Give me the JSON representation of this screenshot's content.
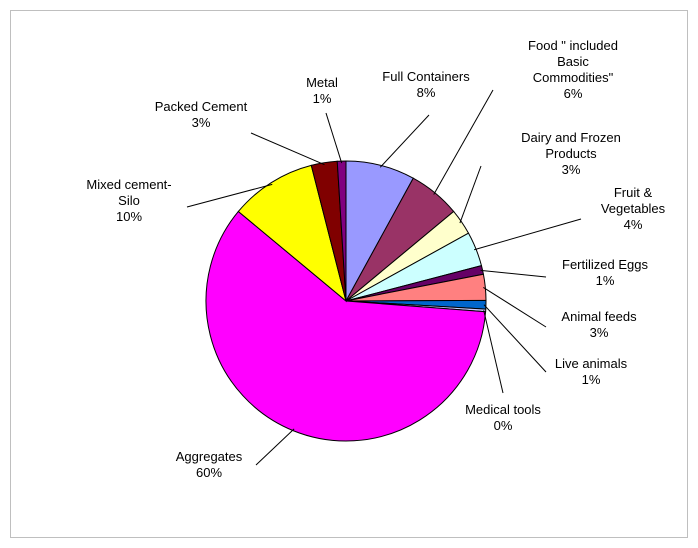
{
  "chart_data": {
    "type": "pie",
    "title": "",
    "start_angle_deg": 0,
    "direction": "clockwise",
    "slices": [
      {
        "label_lines": [
          "Full Containers"
        ],
        "value_label": "8%",
        "value": 8,
        "color": "#9999ff"
      },
      {
        "label_lines": [
          "Food \" included",
          "Basic",
          "Commodities\""
        ],
        "value_label": "6%",
        "value": 6,
        "color": "#993366"
      },
      {
        "label_lines": [
          "Dairy and Frozen",
          "Products"
        ],
        "value_label": "3%",
        "value": 3,
        "color": "#ffffcc"
      },
      {
        "label_lines": [
          "Fruit &",
          "Vegetables"
        ],
        "value_label": "4%",
        "value": 4,
        "color": "#ccffff"
      },
      {
        "label_lines": [
          "Fertilized Eggs"
        ],
        "value_label": "1%",
        "value": 1,
        "color": "#660066"
      },
      {
        "label_lines": [
          "Animal feeds"
        ],
        "value_label": "3%",
        "value": 3,
        "color": "#ff8080"
      },
      {
        "label_lines": [
          "Live animals"
        ],
        "value_label": "1%",
        "value": 1,
        "color": "#0066cc"
      },
      {
        "label_lines": [
          "Medical tools"
        ],
        "value_label": "0%",
        "value": 0.3,
        "color": "#ccccff"
      },
      {
        "label_lines": [
          "Aggregates"
        ],
        "value_label": "60%",
        "value": 60,
        "color": "#ff00ff"
      },
      {
        "label_lines": [
          "Mixed cement-",
          "Silo"
        ],
        "value_label": "10%",
        "value": 10,
        "color": "#ffff00"
      },
      {
        "label_lines": [
          "Packed Cement"
        ],
        "value_label": "3%",
        "value": 3,
        "color": "#800000"
      },
      {
        "label_lines": [
          "Metal"
        ],
        "value_label": "1%",
        "value": 1,
        "color": "#800080"
      }
    ]
  }
}
